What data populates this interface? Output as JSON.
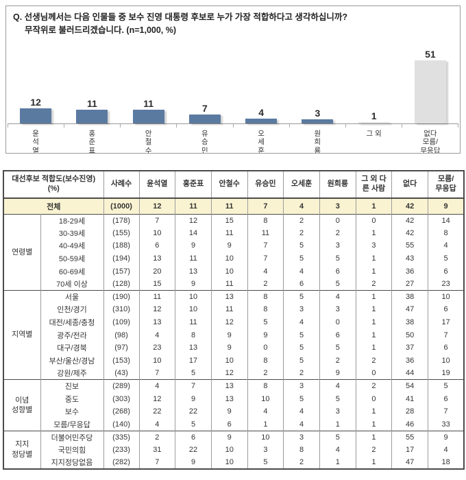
{
  "question": {
    "line1": "Q. 선생님께서는 다음 인물들 중 보수 진영 대통령 후보로 누가 가장 적합하다고 생각하십니까?",
    "line2": "무작위로 불러드리겠습니다.   (n=1,000, %)"
  },
  "colors": {
    "bar_blue": "#5A7AA0",
    "bar_gray": "#E0E0E0",
    "row_highlight": "#FAF3D2",
    "border_dark": "#4a4a4a",
    "border_light": "#9b9b9b"
  },
  "chart_data": {
    "type": "bar",
    "title": "보수 진영 대통령 후보 적합도",
    "categories": [
      "윤석열",
      "홍준표",
      "안철수",
      "유승민",
      "오세훈",
      "원희룡",
      "그 외",
      "없다 모름/무응답"
    ],
    "values": [
      12,
      11,
      11,
      7,
      4,
      3,
      1,
      51
    ],
    "tick_labels": [
      "윤\n석\n열",
      "홍\n준\n표",
      "안\n철\n수",
      "유\n승\n민",
      "오\n세\n훈",
      "원\n희\n룡",
      "그 외",
      "없다\n모름/\n무응답"
    ],
    "bar_colors": [
      "#5A7AA0",
      "#5A7AA0",
      "#5A7AA0",
      "#5A7AA0",
      "#5A7AA0",
      "#5A7AA0",
      "#E0E0E0",
      "#E0E0E0"
    ],
    "xlabel": "",
    "ylabel": "%",
    "ylim": [
      0,
      60
    ],
    "grid": false,
    "legend": false,
    "value_labels": true
  },
  "table": {
    "header": [
      "대선후보 적합도(보수진영)\n(%)",
      "사례수",
      "윤석열",
      "홍준표",
      "안철수",
      "유승민",
      "오세훈",
      "원희룡",
      "그 외 다\n른 사람",
      "없다",
      "모름/\n무응답"
    ],
    "total_row": {
      "label": "전체",
      "n": "(1000)",
      "values": [
        12,
        11,
        11,
        7,
        4,
        3,
        1,
        42,
        9
      ]
    },
    "groups": [
      {
        "label": "연령별",
        "rows": [
          {
            "label": "18-29세",
            "n": "(178)",
            "values": [
              7,
              12,
              15,
              8,
              2,
              0,
              0,
              42,
              14
            ]
          },
          {
            "label": "30-39세",
            "n": "(155)",
            "values": [
              10,
              14,
              11,
              11,
              2,
              2,
              1,
              42,
              8
            ]
          },
          {
            "label": "40-49세",
            "n": "(188)",
            "values": [
              6,
              9,
              9,
              7,
              5,
              3,
              3,
              55,
              4
            ]
          },
          {
            "label": "50-59세",
            "n": "(194)",
            "values": [
              13,
              11,
              10,
              7,
              5,
              5,
              1,
              43,
              5
            ]
          },
          {
            "label": "60-69세",
            "n": "(157)",
            "values": [
              20,
              13,
              10,
              4,
              4,
              6,
              1,
              36,
              6
            ]
          },
          {
            "label": "70세 이상",
            "n": "(128)",
            "values": [
              15,
              9,
              11,
              2,
              6,
              5,
              2,
              27,
              23
            ]
          }
        ]
      },
      {
        "label": "지역별",
        "rows": [
          {
            "label": "서울",
            "n": "(190)",
            "values": [
              11,
              10,
              13,
              8,
              5,
              4,
              1,
              38,
              10
            ]
          },
          {
            "label": "인천/경기",
            "n": "(310)",
            "values": [
              12,
              10,
              11,
              8,
              3,
              3,
              1,
              47,
              6
            ]
          },
          {
            "label": "대전/세종/충청",
            "n": "(109)",
            "values": [
              13,
              11,
              12,
              5,
              4,
              0,
              1,
              38,
              17
            ]
          },
          {
            "label": "광주/전라",
            "n": "(98)",
            "values": [
              4,
              8,
              9,
              9,
              5,
              6,
              1,
              50,
              7
            ]
          },
          {
            "label": "대구/경북",
            "n": "(97)",
            "values": [
              23,
              13,
              9,
              0,
              5,
              5,
              1,
              37,
              6
            ]
          },
          {
            "label": "부산/울산/경남",
            "n": "(153)",
            "values": [
              10,
              17,
              10,
              8,
              5,
              2,
              2,
              36,
              10
            ]
          },
          {
            "label": "강원/제주",
            "n": "(43)",
            "values": [
              7,
              5,
              12,
              2,
              2,
              9,
              0,
              44,
              19
            ]
          }
        ]
      },
      {
        "label": "이념\n성향별",
        "rows": [
          {
            "label": "진보",
            "n": "(289)",
            "values": [
              4,
              7,
              13,
              8,
              3,
              4,
              2,
              54,
              5
            ]
          },
          {
            "label": "중도",
            "n": "(303)",
            "values": [
              12,
              9,
              13,
              10,
              5,
              5,
              0,
              41,
              6
            ]
          },
          {
            "label": "보수",
            "n": "(268)",
            "values": [
              22,
              22,
              9,
              4,
              4,
              3,
              1,
              28,
              7
            ]
          },
          {
            "label": "모름/무응답",
            "n": "(140)",
            "values": [
              4,
              5,
              6,
              1,
              4,
              1,
              1,
              46,
              33
            ]
          }
        ]
      },
      {
        "label": "지지\n정당별",
        "rows": [
          {
            "label": "더불어민주당",
            "n": "(335)",
            "values": [
              2,
              6,
              9,
              10,
              3,
              5,
              1,
              55,
              9
            ]
          },
          {
            "label": "국민의힘",
            "n": "(233)",
            "values": [
              31,
              22,
              10,
              3,
              8,
              4,
              2,
              17,
              4
            ]
          },
          {
            "label": "지지정당없음",
            "n": "(282)",
            "values": [
              7,
              9,
              10,
              5,
              2,
              1,
              1,
              47,
              18
            ]
          }
        ]
      }
    ]
  }
}
